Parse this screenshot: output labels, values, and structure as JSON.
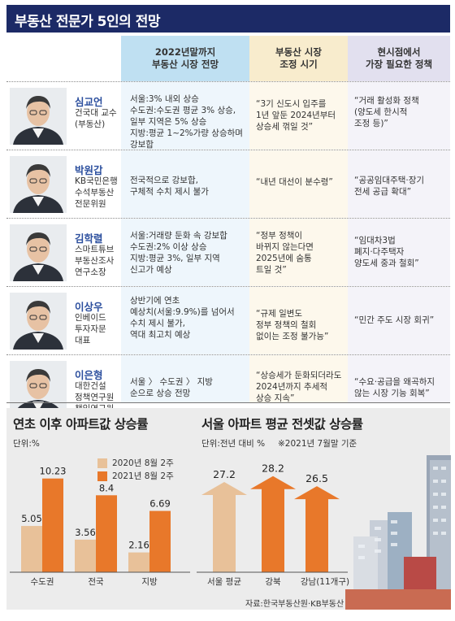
{
  "title": "부동산 전문가 5인의 전망",
  "table": {
    "headers": [
      "2022년말까지\n부동산 시장 전망",
      "부동산 시장\n조정 시기",
      "현시점에서\n가장 필요한 정책"
    ],
    "rows": [
      {
        "name": "심교언",
        "affiliation": "건국대 교수\n(부동산)",
        "outlook": "서울:3% 내외 상승\n수도권:수도권 평균 3% 상승,\n일부 지역은 5% 상승\n지방:평균 1~2%가량 상승하며\n강보합",
        "timing": "“3기 신도시 입주를\n1년 앞둔 2024년부터\n상승세 꺾일 것”",
        "policy": "“거래 활성화 정책\n(양도세 한시적\n조정 등)”"
      },
      {
        "name": "박원갑",
        "affiliation": "KB국민은행\n수석부동산\n전문위원",
        "outlook": "전국적으로 강보합,\n구체적 수치 제시 불가",
        "timing": "“내년 대선이 분수령”",
        "policy": "“공공임대주택·장기\n전세 공급 확대”"
      },
      {
        "name": "김학렬",
        "affiliation": "스마트튜브\n부동산조사\n연구소장",
        "outlook": "서울:거래량 둔화 속 강보합\n수도권:2% 이상 상승\n지방:평균 3%, 일부 지역\n신고가 예상",
        "timing": "“정부 정책이\n바뀌지 않는다면\n2025년에 숨통\n트일 것”",
        "policy": "“임대차3법\n폐지·다주택자\n양도세 중과 철회”"
      },
      {
        "name": "이상우",
        "affiliation": "인베이드\n투자자문\n대표",
        "outlook": "상반기에 연초\n예상치(서울:9.9%)를 넘어서\n수치 제시 불가,\n역대 최고치 예상",
        "timing": "“규제 일변도\n정부 정책의 철회\n없이는 조정 불가능”",
        "policy": "“민간 주도 시장 회귀”"
      },
      {
        "name": "이은형",
        "affiliation": "대한건설\n정책연구원\n책임연구원",
        "outlook": "서울 〉 수도권 〉 지방\n순으로 상승 전망",
        "timing": "“상승세가 둔화되더라도\n2024년까지 추세적\n상승 지속”",
        "policy": "“수요·공급을 왜곡하지\n않는 시장 기능 회복”"
      }
    ]
  },
  "chart_data": [
    {
      "type": "bar",
      "title": "연초 이후 아파트값 상승률",
      "unit_label": "단위:%",
      "categories": [
        "수도권",
        "전국",
        "지방"
      ],
      "series": [
        {
          "name": "2020년 8월 2주",
          "values": [
            5.05,
            3.56,
            2.16
          ],
          "color": "#e8c199"
        },
        {
          "name": "2021년 8월 2주",
          "values": [
            10.23,
            8.4,
            6.69
          ],
          "color": "#e8782a"
        }
      ],
      "ylim": [
        0,
        11
      ],
      "legend": "top"
    },
    {
      "type": "bar",
      "title": "서울 아파트 평균 전셋값 상승률",
      "unit_label": "단위:전년 대비 %",
      "note": "※2021년 7월말 기준",
      "categories": [
        "서울 평균",
        "강북",
        "강남(11개구)"
      ],
      "values": [
        27.2,
        28.2,
        26.5
      ],
      "colors": [
        "#e8c199",
        "#e8782a",
        "#e8782a"
      ],
      "ylim": [
        0,
        30
      ]
    }
  ],
  "source": "자료:한국부동산원·KB부동산"
}
